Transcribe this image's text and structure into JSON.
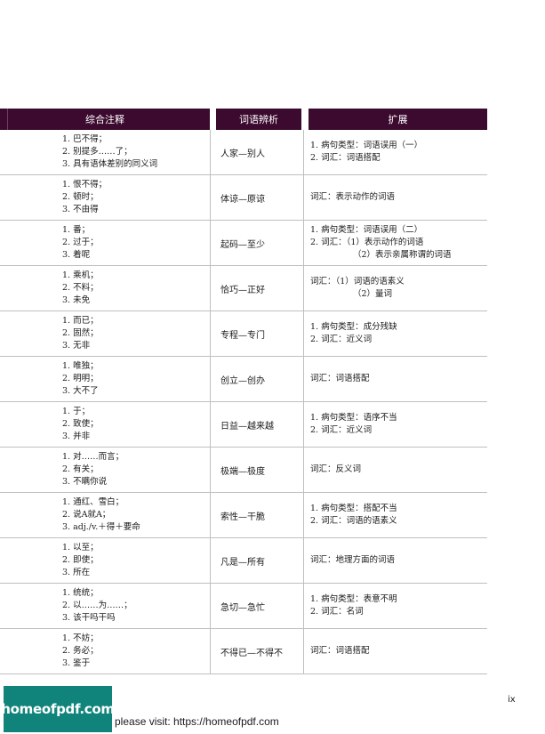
{
  "headers": [
    "综合注释",
    "词语辨析",
    "扩展"
  ],
  "rows": [
    {
      "notes": [
        "1. 巴不得；",
        "2. 别提多……了；",
        "3. 具有语体差别的同义词"
      ],
      "analysis": "人家—别人",
      "ext": [
        "1. 病句类型：词语误用（一）",
        "2. 词汇：词语搭配"
      ]
    },
    {
      "notes": [
        "1. 恨不得；",
        "2. 顿时；",
        "3. 不由得"
      ],
      "analysis": "体谅—原谅",
      "ext": [
        "词汇：表示动作的词语"
      ]
    },
    {
      "notes": [
        "1. 番；",
        "2. 过于；",
        "3. 着呢"
      ],
      "analysis": "起码—至少",
      "ext": [
        "1. 病句类型：词语误用（二）",
        "2. 词汇：（1）表示动作的词语",
        "（2）表示亲属称谓的词语"
      ]
    },
    {
      "notes": [
        "1. 乘机；",
        "2. 不料；",
        "3. 未免"
      ],
      "analysis": "恰巧—正好",
      "ext": [
        "词汇：（1）词语的语素义",
        "（2）量词"
      ]
    },
    {
      "notes": [
        "1. 而已；",
        "2. 固然；",
        "3. 无非"
      ],
      "analysis": "专程—专门",
      "ext": [
        "1. 病句类型：成分残缺",
        "2. 词汇：近义词"
      ]
    },
    {
      "notes": [
        "1. 唯独；",
        "2. 明明；",
        "3. 大不了"
      ],
      "analysis": "创立—创办",
      "ext": [
        "词汇：词语搭配"
      ]
    },
    {
      "notes": [
        "1. 于；",
        "2. 致使；",
        "3. 并非"
      ],
      "analysis": "日益—越来越",
      "ext": [
        "1. 病句类型：语序不当",
        "2. 词汇：近义词"
      ]
    },
    {
      "notes": [
        "1. 对……而言；",
        "2. 有关；",
        "3. 不瞒你说"
      ],
      "analysis": "极端—极度",
      "ext": [
        "词汇：反义词"
      ]
    },
    {
      "notes": [
        "1. 通红、雪白；",
        "2. 说A就A；",
        "3. adj./v.＋得＋要命"
      ],
      "analysis": "索性—干脆",
      "ext": [
        "1. 病句类型：搭配不当",
        "2. 词汇：词语的语素义"
      ]
    },
    {
      "notes": [
        "1. 以至；",
        "2. 即使；",
        "3. 所在"
      ],
      "analysis": "凡是—所有",
      "ext": [
        "词汇：地理方面的词语"
      ]
    },
    {
      "notes": [
        "1. 统统；",
        "2. 以……为……；",
        "3. 该干吗干吗"
      ],
      "analysis": "急切—急忙",
      "ext": [
        "1. 病句类型：表意不明",
        "2. 词汇：名词"
      ]
    },
    {
      "notes": [
        "1. 不妨；",
        "2. 务必；",
        "3. 鉴于"
      ],
      "analysis": "不得已—不得不",
      "ext": [
        "词汇：词语搭配"
      ]
    }
  ],
  "page_number": "ix",
  "footer": {
    "logo": "homeofpdf.com",
    "visit_text": "please visit: https://homeofpdf.com"
  }
}
